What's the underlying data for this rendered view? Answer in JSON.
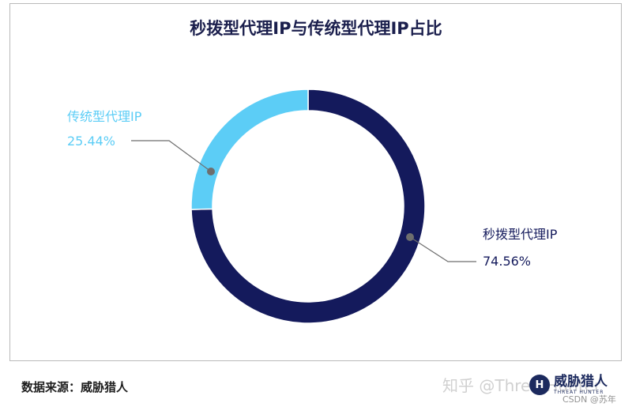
{
  "chart_data": {
    "type": "pie",
    "title": "秒拨型代理IP与传统型代理IP占比",
    "slices": [
      {
        "label": "秒拨型代理IP",
        "value": 74.56,
        "display": "74.56%",
        "color": "#141a5c"
      },
      {
        "label": "传统型代理IP",
        "value": 25.44,
        "display": "25.44%",
        "color": "#5ccdf6"
      }
    ]
  },
  "footer": {
    "source": "数据来源：威胁猎人",
    "watermark": "知乎 @ThreatHunter",
    "logo_cn": "威胁猎人",
    "logo_en": "THREAT HUNTER",
    "logo_mark": "H",
    "credit": "CSDN @苏年"
  }
}
